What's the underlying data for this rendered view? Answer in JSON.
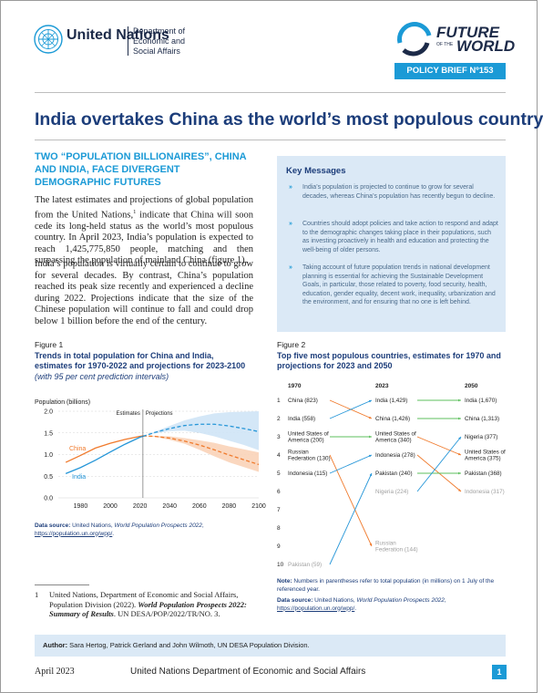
{
  "header": {
    "un_name": "United Nations",
    "department": "Department of Economic and Social Affairs",
    "series_top": "FUTURE",
    "series_small": "OF THE",
    "series_bottom": "WORLD",
    "brief_badge": "POLICY BRIEF Nº153"
  },
  "title": "India overtakes China as the world’s most populous country",
  "subhead": "TWO “POPULATION BILLIONAIRES”, CHINA AND INDIA, FACE DIVERGENT DEMOGRAPHIC FUTURES",
  "paragraphs": {
    "p1_a": "The latest estimates and projections of global population from the United Nations,",
    "p1_sup": "1",
    "p1_b": " indicate that China will soon cede its long-held status as the world’s most populous country. In April 2023, India’s population is expected to reach 1,425,775,850 people, matching and then surpassing the population of mainland China (figure 1).",
    "p2": "India’s population is virtually certain to continue to grow for several decades. By contrast, China’s population reached its peak size recently and experienced a decline during 2022. Projections indicate that the size of the Chinese population will continue to fall and could drop below 1 billion before the end of the century."
  },
  "key_messages": {
    "title": "Key Messages",
    "bullet": "»",
    "items": [
      "India’s population is projected to continue to grow for several decades, whereas China’s population has recently begun to decline.",
      "Countries should adopt policies and take action to respond and adapt to the demographic changes taking place in their populations, such as investing proactively in health and education and protecting the well-being of older persons.",
      "Taking account of future population trends in national development planning is essential for achieving the Sustainable Development Goals, in particular, those related to poverty, food security, health, education, gender equality, decent work, inequality, urbanization and the environment, and for ensuring that no one is left behind."
    ]
  },
  "figure1": {
    "label": "Figure 1",
    "title": "Trends in total population for China and India, estimates for 1970-2022 and projections for 2023-2100",
    "subtitle": "(with 95 per cent prediction intervals)",
    "source_label": "Data source:",
    "source_text": " United Nations, ",
    "source_title": "World Population Prospects 2022",
    "source_url": "https://population.un.org/wpp/",
    "source_end": "."
  },
  "figure2": {
    "label": "Figure 2",
    "title": "Top five most populous countries, estimates for 1970 and projections for 2023 and 2050",
    "note_label": "Note:",
    "note_text": " Numbers in parentheses refer to total population (in millions) on 1 July of the referenced year.",
    "source_label": "Data source:",
    "source_text": " United Nations, ",
    "source_title": "World Population Prospects 2022",
    "source_url": "https://population.un.org/wpp/",
    "source_end": "."
  },
  "chart_data": [
    {
      "type": "line",
      "title": "Trends in total population for China and India, estimates for 1970-2022 and projections for 2023-2100",
      "subtitle": "(with 95 per cent prediction intervals)",
      "ylabel": "Population (billions)",
      "xlabel": "",
      "xlim": [
        1965,
        2100
      ],
      "ylim": [
        0,
        2.0
      ],
      "xticks": [
        "1980",
        "2000",
        "2020",
        "2040",
        "2060",
        "2080",
        "2100"
      ],
      "xtick_values": [
        1980,
        2000,
        2020,
        2040,
        2060,
        2080,
        2100
      ],
      "yticks": [
        "0.0",
        "0.5",
        "1.0",
        "1.5",
        "2.0"
      ],
      "ytick_values": [
        0,
        0.5,
        1.0,
        1.5,
        2.0
      ],
      "annotations": [
        "Estimates",
        "Projections"
      ],
      "divider_year": 2022,
      "grid": true,
      "colors": {
        "china": "#f07a2c",
        "china_band": "#f9d3b8",
        "india": "#2596d8",
        "india_band": "#cfe4f6"
      },
      "series": [
        {
          "name": "China",
          "x": [
            1970,
            1980,
            1990,
            2000,
            2010,
            2020,
            2022
          ],
          "values": [
            0.82,
            0.98,
            1.15,
            1.26,
            1.35,
            1.42,
            1.43
          ]
        },
        {
          "name": "India",
          "x": [
            1970,
            1980,
            1990,
            2000,
            2010,
            2020,
            2022
          ],
          "values": [
            0.56,
            0.7,
            0.87,
            1.06,
            1.24,
            1.4,
            1.42
          ]
        },
        {
          "name": "China",
          "projection": true,
          "x": [
            2022,
            2030,
            2040,
            2050,
            2060,
            2070,
            2080,
            2090,
            2100
          ],
          "values": [
            1.43,
            1.42,
            1.38,
            1.31,
            1.22,
            1.11,
            0.99,
            0.88,
            0.77
          ],
          "lower": [
            1.43,
            1.41,
            1.34,
            1.25,
            1.11,
            0.96,
            0.82,
            0.71,
            0.6
          ],
          "upper": [
            1.43,
            1.43,
            1.42,
            1.38,
            1.33,
            1.27,
            1.19,
            1.12,
            1.05
          ]
        },
        {
          "name": "India",
          "projection": true,
          "x": [
            2022,
            2030,
            2040,
            2050,
            2060,
            2070,
            2080,
            2090,
            2100
          ],
          "values": [
            1.42,
            1.51,
            1.6,
            1.67,
            1.7,
            1.7,
            1.66,
            1.6,
            1.53
          ],
          "lower": [
            1.42,
            1.49,
            1.54,
            1.55,
            1.5,
            1.42,
            1.32,
            1.22,
            1.1
          ],
          "upper": [
            1.42,
            1.53,
            1.66,
            1.79,
            1.88,
            1.95,
            1.98,
            1.99,
            2.0
          ]
        }
      ]
    },
    {
      "type": "table",
      "title": "Top five most populous countries, estimates for 1970 and projections for 2023 and 2050",
      "columns": [
        "1970",
        "2023",
        "2050"
      ],
      "ranks": [
        "1",
        "2",
        "3",
        "4",
        "5",
        "6",
        "7",
        "8",
        "9",
        "10"
      ],
      "colors": {
        "up": "#2596d8",
        "down": "#f07a2c",
        "same": "#5cbf5c"
      },
      "rows_1970": [
        {
          "rank": 1,
          "label": "China (823)"
        },
        {
          "rank": 2,
          "label": "India (558)"
        },
        {
          "rank": 3,
          "label": "United States of America (200)"
        },
        {
          "rank": 4,
          "label": "Russian Federation (130)"
        },
        {
          "rank": 5,
          "label": "Indonesia (115)"
        },
        {
          "rank": 10,
          "label": "Pakistan (59)",
          "outside": true
        }
      ],
      "rows_2023": [
        {
          "rank": 1,
          "label": "India (1,429)"
        },
        {
          "rank": 2,
          "label": "China (1,426)"
        },
        {
          "rank": 3,
          "label": "United States of America (340)"
        },
        {
          "rank": 4,
          "label": "Indonesia (278)"
        },
        {
          "rank": 5,
          "label": "Pakistan (240)"
        },
        {
          "rank": 6,
          "label": "Nigeria (224)",
          "outside": true
        },
        {
          "rank": 9,
          "label": "Russian Federation (144)",
          "outside": true
        }
      ],
      "rows_2050": [
        {
          "rank": 1,
          "label": "India (1,670)"
        },
        {
          "rank": 2,
          "label": "China (1,313)"
        },
        {
          "rank": 3,
          "label": "Nigeria (377)"
        },
        {
          "rank": 4,
          "label": "United States of America (375)"
        },
        {
          "rank": 5,
          "label": "Pakistan (368)"
        },
        {
          "rank": 6,
          "label": "Indonesia (317)",
          "outside": true
        }
      ],
      "links": [
        {
          "from": [
            "1970",
            1
          ],
          "to": [
            "2023",
            2
          ],
          "kind": "down"
        },
        {
          "from": [
            "1970",
            2
          ],
          "to": [
            "2023",
            1
          ],
          "kind": "up"
        },
        {
          "from": [
            "1970",
            3
          ],
          "to": [
            "2023",
            3
          ],
          "kind": "same"
        },
        {
          "from": [
            "1970",
            4
          ],
          "to": [
            "2023",
            9
          ],
          "kind": "down"
        },
        {
          "from": [
            "1970",
            5
          ],
          "to": [
            "2023",
            4
          ],
          "kind": "up"
        },
        {
          "from": [
            "1970",
            10
          ],
          "to": [
            "2023",
            5
          ],
          "kind": "up"
        },
        {
          "from": [
            "2023",
            1
          ],
          "to": [
            "2050",
            1
          ],
          "kind": "same"
        },
        {
          "from": [
            "2023",
            2
          ],
          "to": [
            "2050",
            2
          ],
          "kind": "same"
        },
        {
          "from": [
            "2023",
            3
          ],
          "to": [
            "2050",
            4
          ],
          "kind": "down"
        },
        {
          "from": [
            "2023",
            4
          ],
          "to": [
            "2050",
            6
          ],
          "kind": "down"
        },
        {
          "from": [
            "2023",
            5
          ],
          "to": [
            "2050",
            5
          ],
          "kind": "same"
        },
        {
          "from": [
            "2023",
            6
          ],
          "to": [
            "2050",
            3
          ],
          "kind": "up"
        }
      ]
    }
  ],
  "footnote": {
    "number": "1",
    "text_a": "United Nations, Department of Economic and Social Affairs, Population Division (2022). ",
    "text_title": "World Population Prospects 2022: Summary of Results",
    "text_b": ". UN DESA/POP/2022/TR/NO. 3."
  },
  "authors": {
    "label": "Author:",
    "names": " Sara Hertog, Patrick Gerland and John Wilmoth, UN DESA Population Division."
  },
  "footer": {
    "date": "April 2023",
    "org": "United Nations Department of Economic and Social Affairs",
    "page": "1"
  }
}
